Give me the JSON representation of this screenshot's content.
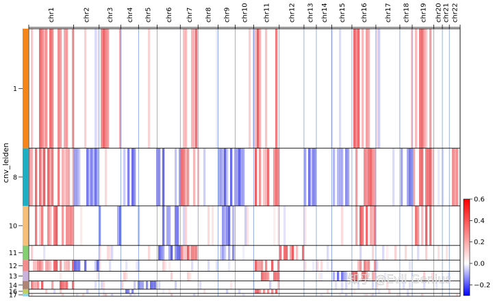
{
  "chart_data": {
    "type": "heatmap",
    "title": "",
    "ylabel": "cnv_leiden",
    "x_categories": [
      "chr1",
      "chr2",
      "chr3",
      "chr4",
      "chr5",
      "chr6",
      "chr7",
      "chr8",
      "chr9",
      "chr10",
      "chr11",
      "chr12",
      "chr13",
      "chr14",
      "chr15",
      "chr16",
      "chr17",
      "chr18",
      "chr19",
      "chr20",
      "chr21",
      "chr22"
    ],
    "chromosome_weights": [
      58,
      33,
      28,
      23,
      24,
      30,
      23,
      26,
      22,
      24,
      33,
      32,
      16,
      20,
      26,
      31,
      31,
      16,
      28,
      11,
      9,
      14
    ],
    "clusters": [
      {
        "label": "1",
        "color": "#f58518",
        "cells": 172
      },
      {
        "label": "8",
        "color": "#1eaec4",
        "cells": 83
      },
      {
        "label": "10",
        "color": "#f5bf7a",
        "cells": 57
      },
      {
        "label": "11",
        "color": "#84cf72",
        "cells": 21
      },
      {
        "label": "12",
        "color": "#f28b8b",
        "cells": 16
      },
      {
        "label": "13",
        "color": "#c9b3dc",
        "cells": 14
      },
      {
        "label": "14",
        "color": "#b08474",
        "cells": 12
      },
      {
        "label": "16",
        "color": "#bccf60",
        "cells": 6
      },
      {
        "label": "17",
        "color": "#8fd8e8",
        "cells": 4
      }
    ],
    "cluster_profiles": {
      "1": {
        "gain": [
          "chr1",
          "chr3",
          "chr7",
          "chr11",
          "chr16",
          "chr19"
        ],
        "loss": []
      },
      "8": {
        "gain": [
          "chr1",
          "chr7",
          "chr11",
          "chr16",
          "chr19",
          "chr22"
        ],
        "loss": [
          "chr2",
          "chr4",
          "chr6",
          "chr9",
          "chr10",
          "chr13",
          "chr15",
          "chr18"
        ]
      },
      "10": {
        "gain": [
          "chr1",
          "chr16",
          "chr19"
        ],
        "loss": [
          "chr3",
          "chr6",
          "chr9"
        ]
      },
      "11": {
        "gain": [
          "chr7",
          "chr12"
        ],
        "loss": [
          "chr6",
          "chr9"
        ]
      },
      "12": {
        "gain": [
          "chr1",
          "chr11",
          "chr16"
        ],
        "loss": [
          "chr2"
        ]
      },
      "13": {
        "gain": [
          "chr11",
          "chr16"
        ],
        "loss": [
          "chr15"
        ]
      },
      "14": {
        "gain": [
          "chr1"
        ],
        "loss": [
          "chr5"
        ]
      },
      "16": {
        "gain": [
          "chr11"
        ],
        "loss": [
          "chr4"
        ]
      },
      "17": {
        "gain": [],
        "loss": []
      }
    },
    "colorbar": {
      "cmap": "bwr",
      "vmin": -0.3,
      "vmax": 0.6,
      "ticks": [
        -0.2,
        0.0,
        0.2,
        0.4,
        0.6
      ],
      "tick_labels": [
        "−0.2",
        "0.0",
        "0.2",
        "0.4",
        "0.6"
      ]
    },
    "grid": false
  },
  "watermark": "知乎 @Evil Genius"
}
